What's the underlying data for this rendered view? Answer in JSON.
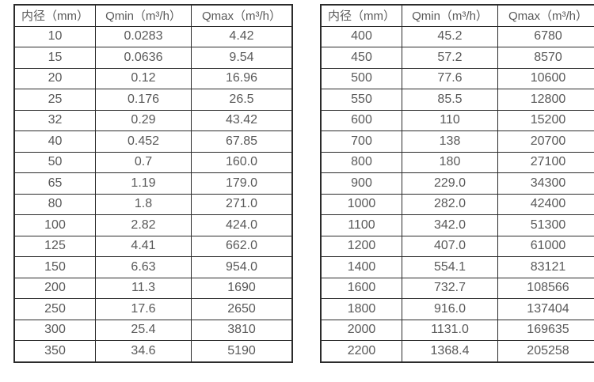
{
  "colors": {
    "border": "#2b2b2b",
    "text": "#595959",
    "background": "#ffffff"
  },
  "tables": [
    {
      "name": "flow-table-small-diameters",
      "headers": [
        "内径（mm）",
        "Qmin（m³/h）",
        "Qmax（m³/h）"
      ],
      "rows": [
        [
          "10",
          "0.0283",
          "4.42"
        ],
        [
          "15",
          "0.0636",
          "9.54"
        ],
        [
          "20",
          "0.12",
          "16.96"
        ],
        [
          "25",
          "0.176",
          "26.5"
        ],
        [
          "32",
          "0.29",
          "43.42"
        ],
        [
          "40",
          "0.452",
          "67.85"
        ],
        [
          "50",
          "0.7",
          "160.0"
        ],
        [
          "65",
          "1.19",
          "179.0"
        ],
        [
          "80",
          "1.8",
          "271.0"
        ],
        [
          "100",
          "2.82",
          "424.0"
        ],
        [
          "125",
          "4.41",
          "662.0"
        ],
        [
          "150",
          "6.63",
          "954.0"
        ],
        [
          "200",
          "11.3",
          "1690"
        ],
        [
          "250",
          "17.6",
          "2650"
        ],
        [
          "300",
          "25.4",
          "3810"
        ],
        [
          "350",
          "34.6",
          "5190"
        ]
      ]
    },
    {
      "name": "flow-table-large-diameters",
      "headers": [
        "内径（mm）",
        "Qmin（m³/h）",
        "Qmax（m³/h）"
      ],
      "rows": [
        [
          "400",
          "45.2",
          "6780"
        ],
        [
          "450",
          "57.2",
          "8570"
        ],
        [
          "500",
          "77.6",
          "10600"
        ],
        [
          "550",
          "85.5",
          "12800"
        ],
        [
          "600",
          "110",
          "15200"
        ],
        [
          "700",
          "138",
          "20700"
        ],
        [
          "800",
          "180",
          "27100"
        ],
        [
          "900",
          "229.0",
          "34300"
        ],
        [
          "1000",
          "282.0",
          "42400"
        ],
        [
          "1100",
          "342.0",
          "51300"
        ],
        [
          "1200",
          "407.0",
          "61000"
        ],
        [
          "1400",
          "554.1",
          "83121"
        ],
        [
          "1600",
          "732.7",
          "108566"
        ],
        [
          "1800",
          "916.0",
          "137404"
        ],
        [
          "2000",
          "1131.0",
          "169635"
        ],
        [
          "2200",
          "1368.4",
          "205258"
        ]
      ]
    }
  ]
}
